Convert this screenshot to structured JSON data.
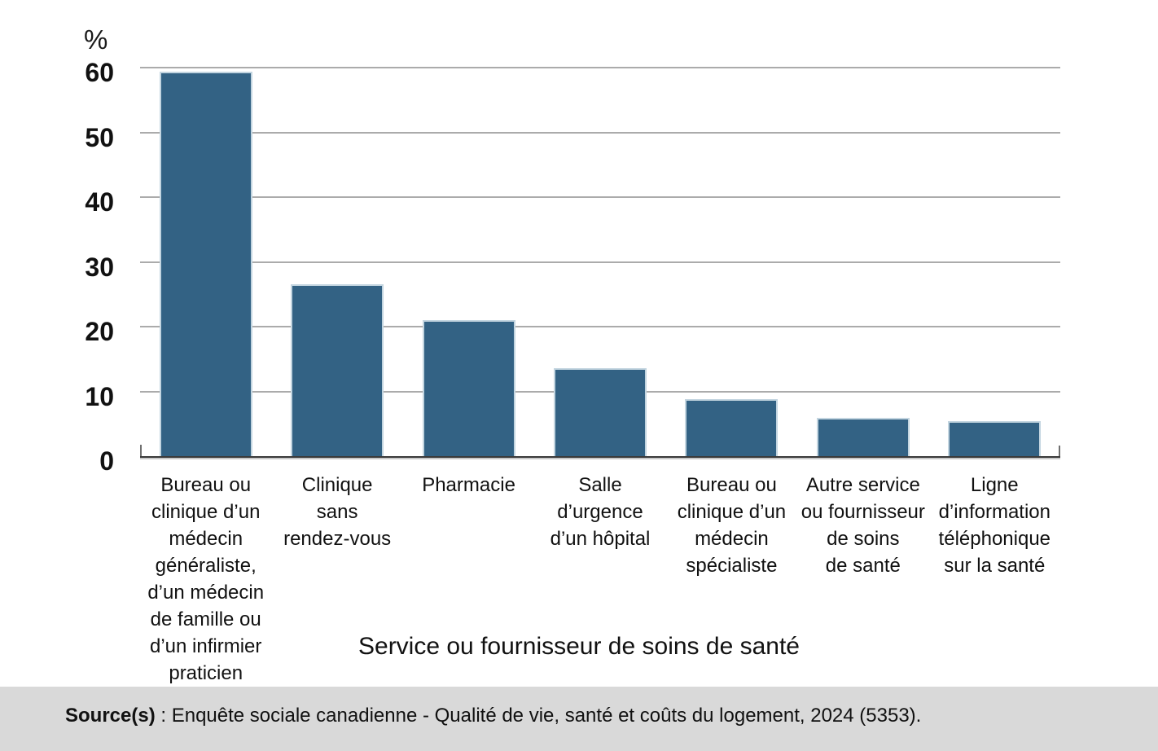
{
  "chart_data": {
    "type": "bar",
    "title": "",
    "xlabel": "Service ou fournisseur de soins de santé",
    "ylabel": "%",
    "ylim": [
      0,
      60
    ],
    "yticks": [
      0,
      10,
      20,
      30,
      40,
      50,
      60
    ],
    "grid": true,
    "legend": "none",
    "bar_color": "#336284",
    "bar_border_color": "#c3d5e0",
    "categories": [
      [
        "Bureau ou",
        "clinique d’un",
        "médecin",
        "généraliste,",
        "d’un médecin",
        "de famille ou",
        "d’un infirmier",
        "praticien"
      ],
      [
        "Clinique",
        "sans",
        "rendez-vous"
      ],
      [
        "Pharmacie"
      ],
      [
        "Salle",
        "d’urgence",
        "d’un hôpital"
      ],
      [
        "Bureau ou",
        "clinique d’un",
        "médecin",
        "spécialiste"
      ],
      [
        "Autre service",
        "ou fournisseur",
        "de soins",
        "de santé"
      ],
      [
        "Ligne",
        "d’information",
        "téléphonique",
        "sur la santé"
      ]
    ],
    "values": [
      59.4,
      26.5,
      21.0,
      13.6,
      8.8,
      5.9,
      5.4
    ]
  },
  "source_note": {
    "label": "Source(s)",
    "separator": " : ",
    "text": "Enquête sociale canadienne - Qualité de vie, santé et coûts du logement, 2024 (5353)."
  },
  "colors": {
    "gridline": "#ababab",
    "axis": "#3a3a3a",
    "source_background": "#d9d9d9",
    "text": "#111111"
  }
}
